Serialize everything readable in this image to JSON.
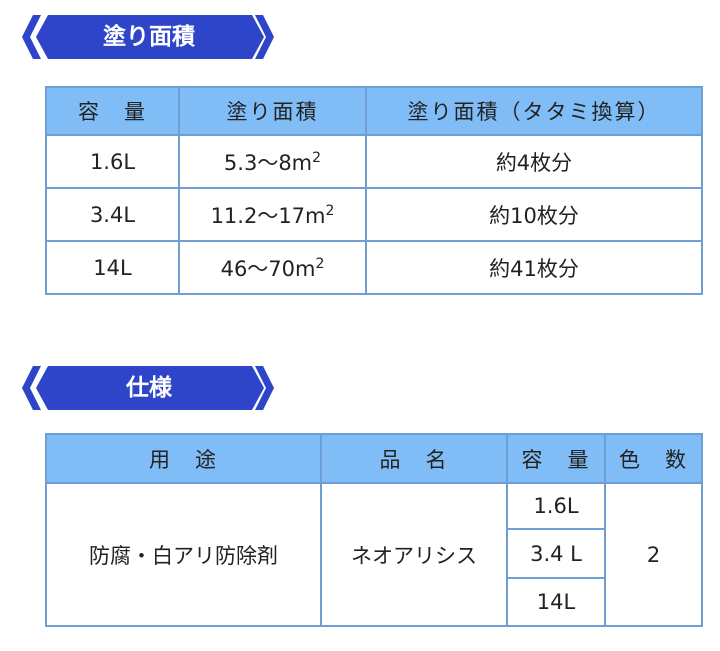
{
  "section1": {
    "title": "塗り面積",
    "headers": [
      "容　量",
      "塗り面積",
      "塗り面積（タタミ換算）"
    ],
    "rows": [
      {
        "capacity": "1.6L",
        "area": "5.3〜8m",
        "unit_sup": "2",
        "tatami": "約4枚分"
      },
      {
        "capacity": "3.4L",
        "area": "11.2〜17m",
        "unit_sup": "2",
        "tatami": "約10枚分"
      },
      {
        "capacity": "14L",
        "area": "46〜70m",
        "unit_sup": "2",
        "tatami": "約41枚分"
      }
    ]
  },
  "section2": {
    "title": "仕様",
    "headers": [
      "用　途",
      "品　名",
      "容　量",
      "色　数"
    ],
    "use": "防腐・白アリ防除剤",
    "product": "ネオアリシス",
    "capacities": [
      "1.6L",
      "3.4 L",
      "14L"
    ],
    "colors": "2"
  },
  "colors": {
    "banner": "#2f45c9",
    "header": "#80bdf7",
    "border": "#6f9ed2"
  }
}
